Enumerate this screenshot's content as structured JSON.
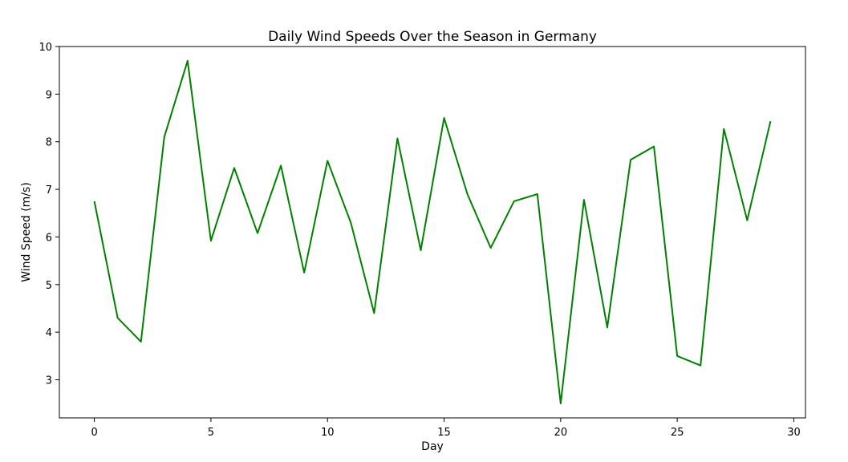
{
  "chart_data": {
    "type": "line",
    "title": "Daily Wind Speeds Over the Season in Germany",
    "xlabel": "Day",
    "ylabel": "Wind Speed (m/s)",
    "xlim": [
      -1.5,
      30.5
    ],
    "ylim": [
      2.2,
      10.0
    ],
    "xticks": [
      0,
      5,
      10,
      15,
      20,
      25,
      30
    ],
    "yticks": [
      3,
      4,
      5,
      6,
      7,
      8,
      9,
      10
    ],
    "grid": false,
    "legend": "none",
    "series": [
      {
        "color": "#008000",
        "x": [
          0,
          1,
          2,
          3,
          4,
          5,
          6,
          7,
          8,
          9,
          10,
          11,
          12,
          13,
          14,
          15,
          16,
          17,
          18,
          19,
          20,
          21,
          22,
          23,
          24,
          25,
          26,
          27,
          28,
          29
        ],
        "values": [
          6.75,
          4.3,
          3.8,
          8.1,
          9.7,
          5.92,
          7.45,
          6.08,
          7.5,
          5.25,
          7.6,
          6.3,
          4.4,
          8.07,
          5.72,
          8.5,
          6.9,
          5.77,
          6.75,
          6.9,
          2.5,
          6.78,
          4.1,
          7.62,
          7.9,
          3.5,
          3.3,
          8.27,
          6.35,
          8.43
        ]
      }
    ]
  }
}
